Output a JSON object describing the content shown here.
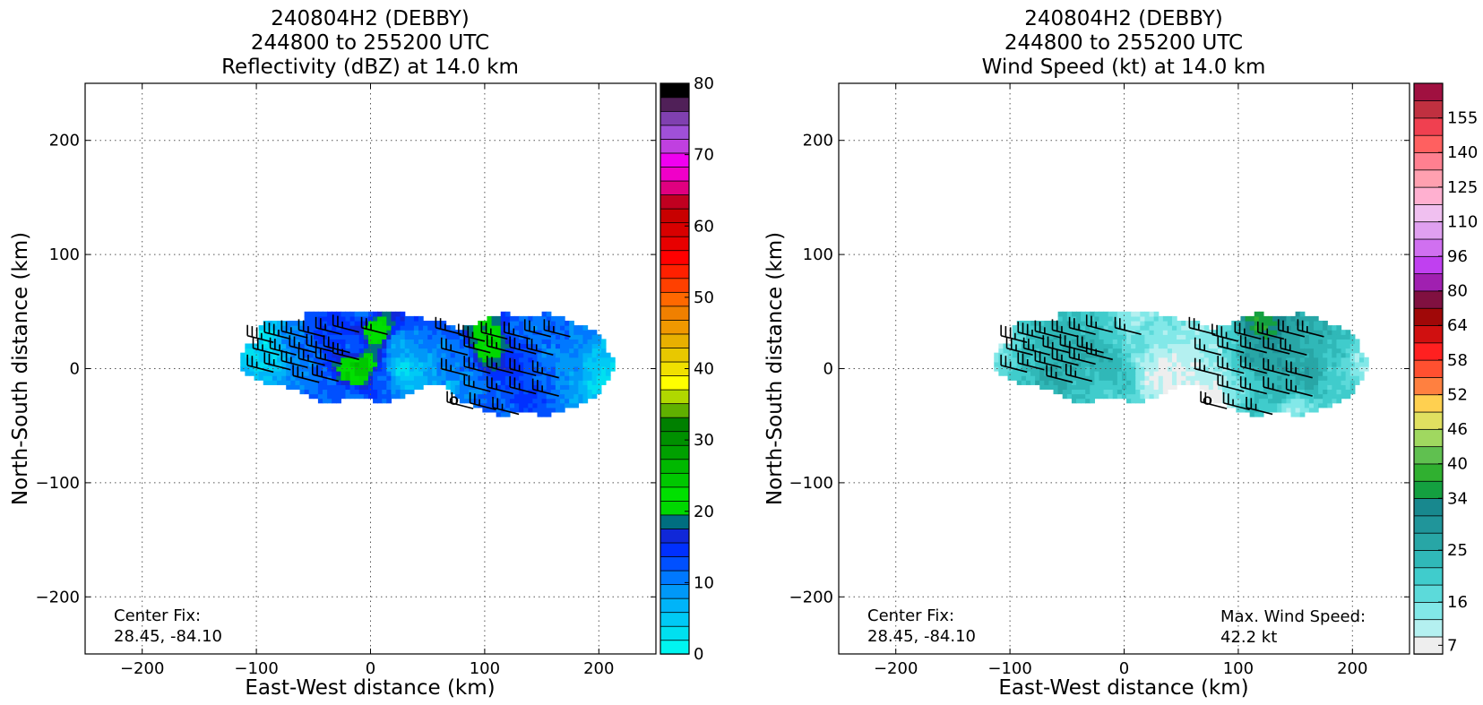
{
  "chart_data": [
    {
      "type": "heatmap",
      "title_lines": [
        "240804H2 (DEBBY)",
        "244800 to 255200 UTC",
        "Reflectivity (dBZ) at 14.0 km"
      ],
      "xlabel": "East-West distance (km)",
      "ylabel": "North-South distance (km)",
      "xlim": [
        -250,
        250
      ],
      "ylim": [
        -250,
        250
      ],
      "x_ticks": [
        -200,
        -100,
        0,
        100,
        200
      ],
      "y_ticks": [
        200,
        100,
        0,
        -100,
        -200
      ],
      "grid": true,
      "annotation_lines": [
        "Center Fix:",
        "28.45, -84.10"
      ],
      "colorbar": {
        "min": 0,
        "max": 80,
        "tick_values": [
          0,
          10,
          20,
          30,
          40,
          50,
          60,
          70,
          80
        ],
        "tick_labels": [
          "0",
          "10",
          "20",
          "30",
          "40",
          "50",
          "60",
          "70",
          "80"
        ],
        "colors": [
          "#00f5f0",
          "#00e0f0",
          "#00caf5",
          "#00b4f8",
          "#0098f8",
          "#0078ff",
          "#0050ff",
          "#0030ff",
          "#1028d8",
          "#006e80",
          "#00d800",
          "#00e000",
          "#00c800",
          "#00b800",
          "#00a000",
          "#009000",
          "#008000",
          "#60b000",
          "#b0d800",
          "#ffff00",
          "#f0e000",
          "#e8c800",
          "#e8b000",
          "#f09800",
          "#f08000",
          "#ff6800",
          "#ff4000",
          "#ff2000",
          "#ff0000",
          "#e80000",
          "#d80000",
          "#c80000",
          "#c00020",
          "#e00080",
          "#f000c8",
          "#f000f0",
          "#c040e0",
          "#a050d8",
          "#8040b0",
          "#502058",
          "#000000"
        ]
      },
      "series": [
        {
          "name": "",
          "points": [
            [
              -75,
              22,
              10
            ],
            [
              -55,
              16,
              12
            ],
            [
              -35,
              24,
              14
            ],
            [
              -15,
              18,
              12
            ],
            [
              0,
              36,
              24
            ],
            [
              5,
              28,
              22
            ],
            [
              -10,
              2,
              26
            ],
            [
              -18,
              -8,
              24
            ],
            [
              -60,
              -6,
              10
            ],
            [
              -40,
              -18,
              12
            ],
            [
              -20,
              -22,
              11
            ],
            [
              -95,
              24,
              3
            ],
            [
              -88,
              12,
              4
            ],
            [
              20,
              20,
              8
            ],
            [
              24,
              -2,
              4
            ],
            [
              8,
              -10,
              12
            ],
            [
              -5,
              44,
              10
            ]
          ]
        },
        {
          "name": "",
          "points": [
            [
              102,
              24,
              24
            ],
            [
              108,
              16,
              22
            ],
            [
              96,
              30,
              20
            ],
            [
              118,
              10,
              14
            ],
            [
              125,
              32,
              12
            ],
            [
              142,
              34,
              11
            ],
            [
              160,
              30,
              12
            ],
            [
              182,
              26,
              10
            ],
            [
              150,
              -5,
              12
            ],
            [
              175,
              -10,
              9
            ],
            [
              195,
              -12,
              4
            ],
            [
              130,
              -25,
              14
            ],
            [
              105,
              -30,
              12
            ],
            [
              85,
              -18,
              10
            ],
            [
              65,
              -5,
              4
            ],
            [
              70,
              16,
              6
            ],
            [
              118,
              -44,
              12
            ],
            [
              200,
              6,
              5
            ],
            [
              160,
              12,
              10
            ]
          ]
        }
      ],
      "wind_barbs": [
        [
          -85,
          23,
          4
        ],
        [
          -70,
          26,
          4
        ],
        [
          -55,
          27,
          3
        ],
        [
          -40,
          28,
          3
        ],
        [
          -25,
          30,
          3
        ],
        [
          -10,
          32,
          3
        ],
        [
          15,
          30,
          3
        ],
        [
          -80,
          12,
          3
        ],
        [
          -65,
          12,
          3
        ],
        [
          -48,
          14,
          3
        ],
        [
          -33,
          15,
          3
        ],
        [
          -18,
          14,
          3
        ],
        [
          -85,
          -3,
          3
        ],
        [
          -70,
          -1,
          3
        ],
        [
          -55,
          1,
          3
        ],
        [
          -40,
          3,
          3
        ],
        [
          -25,
          4,
          3
        ],
        [
          -10,
          8,
          3
        ],
        [
          -45,
          -12,
          3
        ],
        [
          -28,
          -11,
          3
        ],
        [
          80,
          30,
          3
        ],
        [
          100,
          24,
          4
        ],
        [
          120,
          26,
          3
        ],
        [
          140,
          26,
          3
        ],
        [
          158,
          28,
          3
        ],
        [
          175,
          28,
          3
        ],
        [
          85,
          12,
          3
        ],
        [
          105,
          14,
          3
        ],
        [
          125,
          14,
          3
        ],
        [
          145,
          13,
          3
        ],
        [
          160,
          12,
          3
        ],
        [
          85,
          -6,
          3
        ],
        [
          105,
          -4,
          3
        ],
        [
          125,
          -4,
          3
        ],
        [
          145,
          -6,
          3
        ],
        [
          165,
          -8,
          3
        ],
        [
          105,
          -20,
          3
        ],
        [
          125,
          -22,
          3
        ],
        [
          145,
          -22,
          3
        ],
        [
          165,
          -24,
          3
        ],
        [
          90,
          -35,
          3
        ],
        [
          110,
          -36,
          3
        ],
        [
          130,
          -40,
          3
        ]
      ],
      "center_marker": [
        73,
        -28
      ]
    },
    {
      "type": "heatmap",
      "title_lines": [
        "240804H2 (DEBBY)",
        "244800 to 255200 UTC",
        "Wind Speed (kt) at 14.0 km"
      ],
      "xlabel": "East-West distance (km)",
      "ylabel": "North-South distance (km)",
      "xlim": [
        -250,
        250
      ],
      "ylim": [
        -250,
        250
      ],
      "x_ticks": [
        -200,
        -100,
        0,
        100,
        200
      ],
      "y_ticks": [
        200,
        100,
        0,
        -100,
        -200
      ],
      "grid": true,
      "annotation_lines": [
        "Center Fix:",
        "28.45, -84.10"
      ],
      "annotation_right_lines": [
        "Max. Wind Speed:",
        "42.2 kt"
      ],
      "colorbar": {
        "min": 4,
        "max": 160,
        "tick_values": [
          7,
          16,
          25,
          34,
          40,
          46,
          52,
          58,
          64,
          80,
          96,
          110,
          125,
          140,
          155
        ],
        "tick_labels": [
          "7",
          "16",
          "25",
          "34",
          "40",
          "46",
          "52",
          "58",
          "64",
          "80",
          "96",
          "110",
          "125",
          "140",
          "155"
        ],
        "bin_edges": [
          4,
          10,
          13,
          16,
          19,
          22,
          25,
          28,
          31,
          34,
          37,
          40,
          43,
          46,
          49,
          52,
          55,
          58,
          61,
          64,
          72,
          80,
          88,
          96,
          103,
          110,
          118,
          125,
          133,
          140,
          148,
          155,
          160
        ],
        "colors": [
          "#eeeeee",
          "#b4f0f0",
          "#82e8e8",
          "#5cdada",
          "#40cccc",
          "#30b8b8",
          "#28a6a6",
          "#20959a",
          "#18888e",
          "#14a040",
          "#30b030",
          "#60c050",
          "#a0d860",
          "#e0e060",
          "#ffd050",
          "#ff8040",
          "#ff5030",
          "#ff2020",
          "#d01010",
          "#a00808",
          "#801040",
          "#a020b0",
          "#c040f0",
          "#d070f0",
          "#e0a0f0",
          "#f0c0f0",
          "#ffb0d0",
          "#ffa0b0",
          "#ff8090",
          "#ff6060",
          "#f04050",
          "#c03040",
          "#a01040"
        ]
      },
      "series": [
        {
          "name": "",
          "points": [
            [
              -90,
              16,
              22
            ],
            [
              -70,
              20,
              24
            ],
            [
              -50,
              10,
              26
            ],
            [
              -30,
              18,
              24
            ],
            [
              -15,
              4,
              25
            ],
            [
              -5,
              -5,
              22
            ],
            [
              -60,
              -4,
              26
            ],
            [
              -40,
              -15,
              23
            ],
            [
              -20,
              -22,
              20
            ],
            [
              -100,
              22,
              18
            ],
            [
              -110,
              18,
              14
            ],
            [
              10,
              20,
              16
            ],
            [
              20,
              4,
              12
            ],
            [
              28,
              -4,
              8
            ],
            [
              -12,
              28,
              20
            ],
            [
              5,
              38,
              14
            ]
          ]
        },
        {
          "name": "",
          "points": [
            [
              90,
              22,
              18
            ],
            [
              110,
              16,
              27
            ],
            [
              130,
              8,
              28
            ],
            [
              150,
              16,
              26
            ],
            [
              170,
              20,
              24
            ],
            [
              185,
              12,
              22
            ],
            [
              160,
              -5,
              27
            ],
            [
              180,
              -10,
              20
            ],
            [
              135,
              -20,
              24
            ],
            [
              115,
              -30,
              22
            ],
            [
              95,
              -22,
              16
            ],
            [
              70,
              -10,
              10
            ],
            [
              60,
              5,
              7
            ],
            [
              75,
              -28,
              5
            ],
            [
              145,
              -38,
              14
            ],
            [
              200,
              4,
              14
            ],
            [
              118,
              34,
              36
            ]
          ]
        }
      ],
      "wind_barbs": [
        [
          -85,
          23,
          4
        ],
        [
          -70,
          26,
          4
        ],
        [
          -55,
          27,
          3
        ],
        [
          -40,
          28,
          3
        ],
        [
          -25,
          30,
          3
        ],
        [
          -10,
          32,
          3
        ],
        [
          15,
          30,
          3
        ],
        [
          -80,
          12,
          3
        ],
        [
          -65,
          12,
          3
        ],
        [
          -48,
          14,
          3
        ],
        [
          -33,
          15,
          3
        ],
        [
          -18,
          14,
          3
        ],
        [
          -85,
          -3,
          3
        ],
        [
          -70,
          -1,
          3
        ],
        [
          -55,
          1,
          3
        ],
        [
          -40,
          3,
          3
        ],
        [
          -25,
          4,
          3
        ],
        [
          -10,
          8,
          3
        ],
        [
          -45,
          -12,
          3
        ],
        [
          -28,
          -11,
          3
        ],
        [
          80,
          30,
          3
        ],
        [
          100,
          24,
          4
        ],
        [
          120,
          26,
          3
        ],
        [
          140,
          26,
          3
        ],
        [
          158,
          28,
          3
        ],
        [
          175,
          28,
          3
        ],
        [
          85,
          12,
          3
        ],
        [
          105,
          14,
          3
        ],
        [
          125,
          14,
          3
        ],
        [
          145,
          13,
          3
        ],
        [
          160,
          12,
          3
        ],
        [
          85,
          -6,
          3
        ],
        [
          105,
          -4,
          3
        ],
        [
          125,
          -4,
          3
        ],
        [
          145,
          -6,
          3
        ],
        [
          165,
          -8,
          3
        ],
        [
          105,
          -20,
          3
        ],
        [
          125,
          -22,
          3
        ],
        [
          145,
          -22,
          3
        ],
        [
          165,
          -24,
          3
        ],
        [
          90,
          -35,
          3
        ],
        [
          110,
          -36,
          3
        ],
        [
          130,
          -40,
          3
        ]
      ],
      "center_marker": [
        73,
        -28
      ]
    }
  ]
}
